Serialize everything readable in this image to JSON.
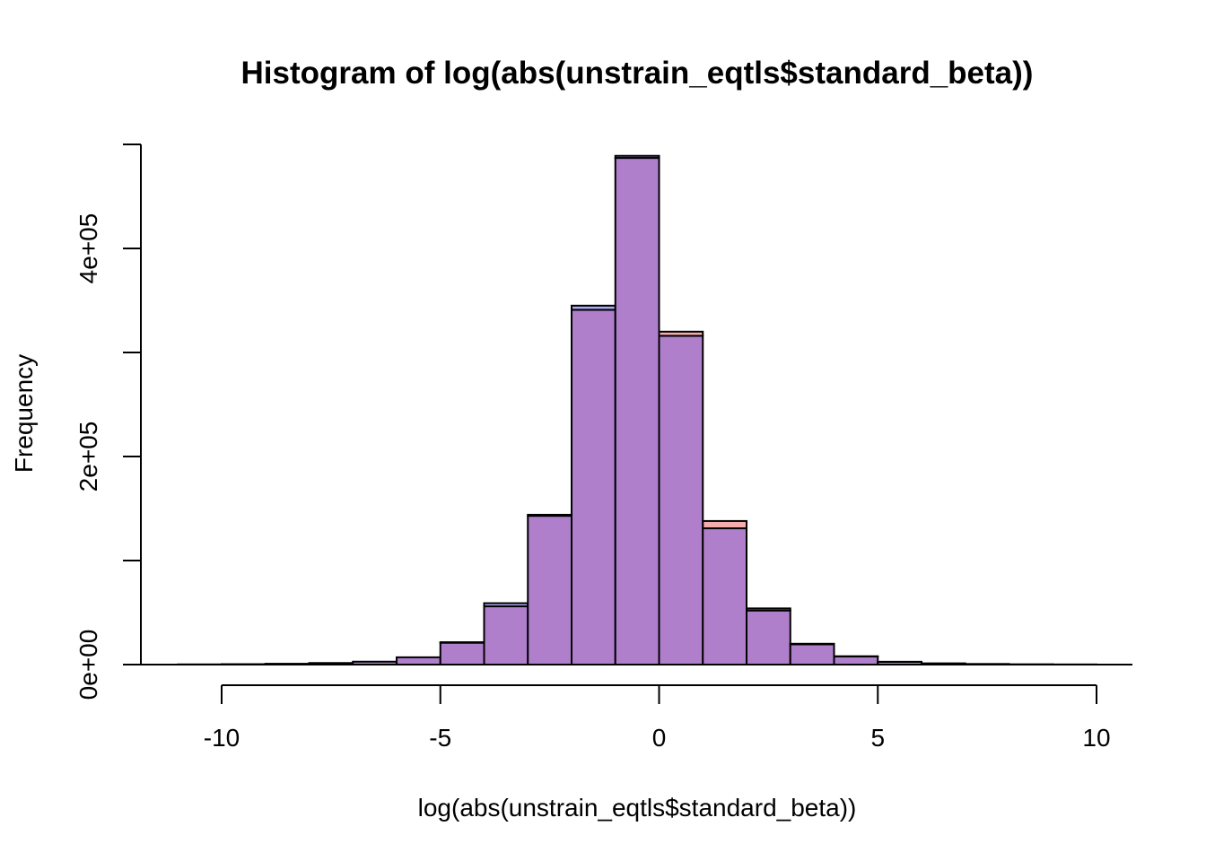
{
  "chart_data": {
    "type": "bar",
    "title": "Histogram of log(abs(unstrain_eqtls$standard_beta))",
    "xlabel": "log(abs(unstrain_eqtls$standard_beta))",
    "ylabel": "Frequency",
    "xlim": [
      -11,
      10
    ],
    "ylim": [
      0,
      500000
    ],
    "x_ticks": [
      -10,
      -5,
      0,
      5,
      10
    ],
    "x_tick_labels": [
      "-10",
      "-5",
      "0",
      "5",
      "10"
    ],
    "y_ticks": [
      0,
      100000,
      200000,
      300000,
      400000,
      500000
    ],
    "y_tick_labels": [
      "0e+00",
      "",
      "2e+05",
      "",
      "4e+05",
      ""
    ],
    "bin_edges": [
      -11,
      -10,
      -9,
      -8,
      -7,
      -6,
      -5,
      -4,
      -3,
      -2,
      -1,
      0,
      1,
      2,
      3,
      4,
      5,
      6,
      7,
      8,
      9,
      10
    ],
    "series": [
      {
        "color": "#f08080",
        "opacity": 0.65,
        "values": [
          200,
          400,
          800,
          1500,
          2800,
          7000,
          21000,
          56000,
          143000,
          341000,
          487000,
          320000,
          138000,
          52000,
          20000,
          8000,
          2700,
          1200,
          600,
          300,
          150
        ]
      },
      {
        "color": "#8080f0",
        "opacity": 0.65,
        "values": [
          200,
          400,
          800,
          1500,
          2800,
          7000,
          21500,
          59000,
          144000,
          345000,
          489000,
          316000,
          131000,
          54000,
          19500,
          7800,
          2600,
          1200,
          600,
          300,
          150
        ]
      }
    ],
    "overlap_color": "#b07fcc",
    "grid": false,
    "legend": "none"
  }
}
